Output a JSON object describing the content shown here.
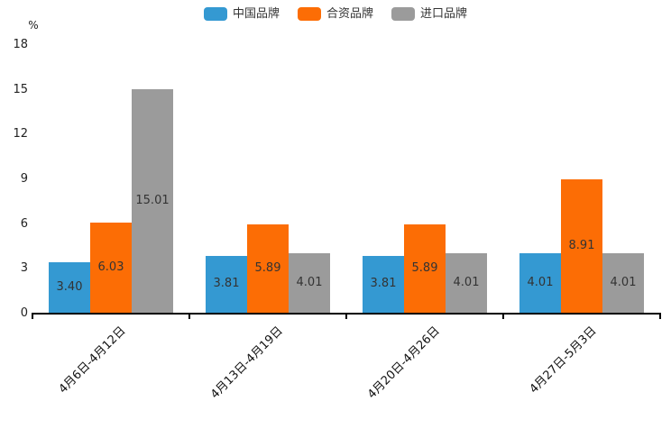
{
  "chart_data": {
    "type": "bar",
    "title": "",
    "categories": [
      "4月6日-4月12日",
      "4月13日-4月19日",
      "4月20日-4月26日",
      "4月27日-5月3日"
    ],
    "series": [
      {
        "name": "中国品牌",
        "color": "#3499D2",
        "values": [
          3.4,
          3.81,
          3.81,
          4.01
        ],
        "labels": [
          "3.40",
          "3.81",
          "3.81",
          "4.01"
        ]
      },
      {
        "name": "合资品牌",
        "color": "#FC6D05",
        "values": [
          6.03,
          5.89,
          5.89,
          8.91
        ],
        "labels": [
          "6.03",
          "5.89",
          "5.89",
          "8.91"
        ]
      },
      {
        "name": "进口品牌",
        "color": "#9B9B9B",
        "values": [
          15.01,
          4.01,
          4.01,
          4.01
        ],
        "labels": [
          "15.01",
          "4.01",
          "4.01",
          "4.01"
        ]
      }
    ],
    "xlabel": "",
    "ylabel": "%",
    "ylim": [
      0,
      18
    ],
    "yticks": [
      0,
      3,
      6,
      9,
      12,
      15,
      18
    ],
    "grid": false,
    "legend_position": "top-center",
    "bar_label_position": "inside-center",
    "value_label_color": "#333333",
    "axis_color": "#000000",
    "background_color": "#ffffff"
  }
}
